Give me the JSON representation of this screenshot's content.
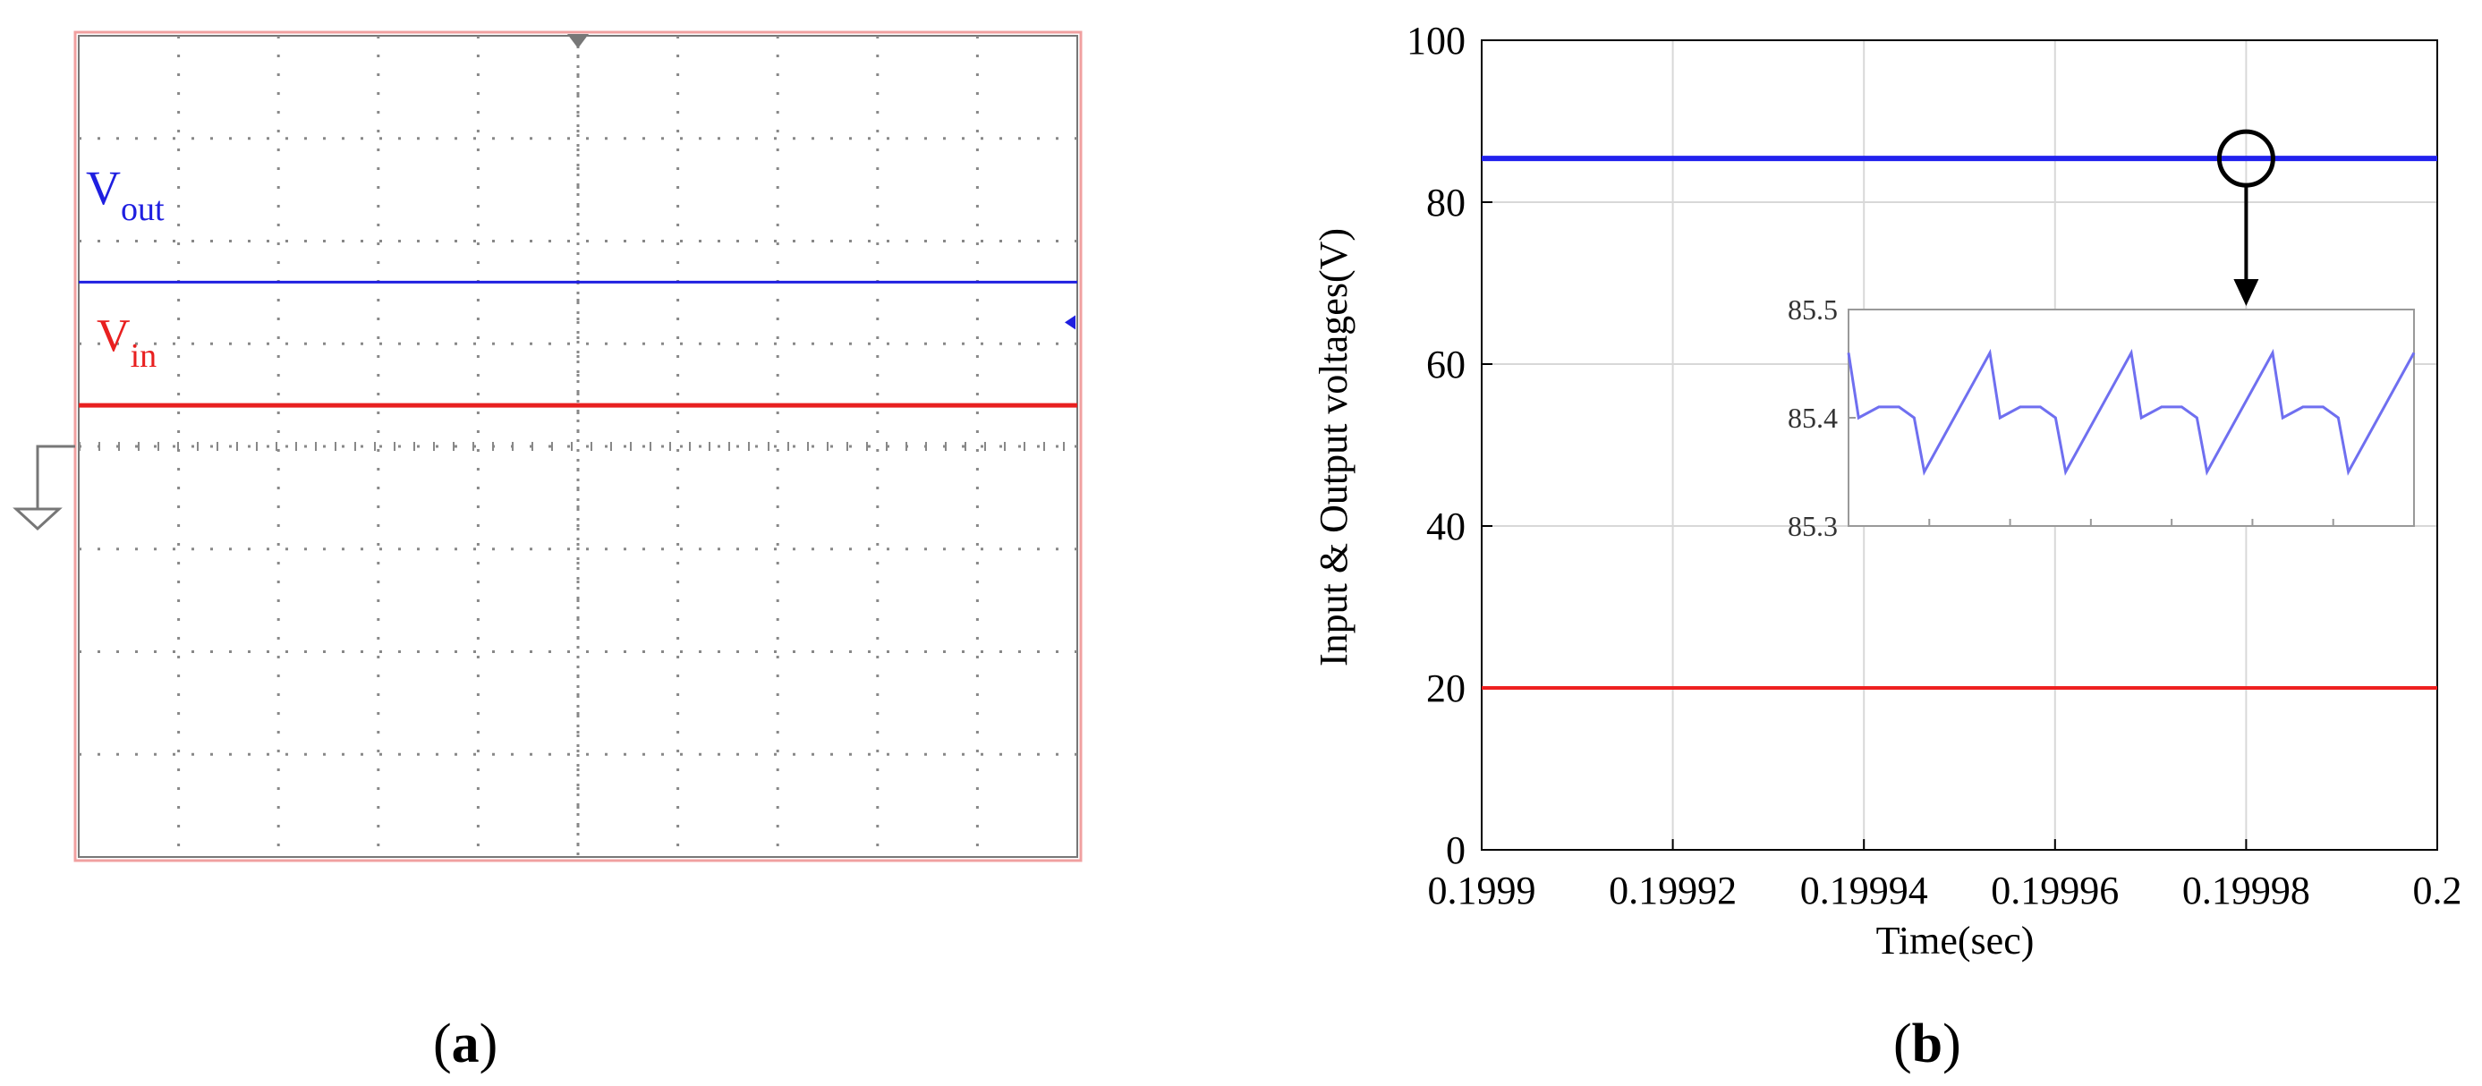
{
  "captions": {
    "a_open": "(",
    "a_letter": "a",
    "a_close": ")",
    "b_open": "(",
    "b_letter": "b",
    "b_close": ")"
  },
  "colors": {
    "vout": "#1f1fe0",
    "vin": "#e82020",
    "sim_out": "#2222ee",
    "sim_in": "#ee2020",
    "inset_line": "#6f6ff0",
    "grid": "#d8d8d8"
  },
  "chart_data": [
    {
      "type": "line",
      "panel": "a",
      "source": "oscilloscope",
      "grid": {
        "divisions_x": 10,
        "divisions_y": 8
      },
      "series": [
        {
          "name": "V",
          "subscript": "out",
          "color": "#1f1fe0",
          "level_div": 5.6
        },
        {
          "name": "V",
          "subscript": "in",
          "color": "#e82020",
          "level_div": 4.4
        }
      ],
      "ground_marker_div": 4.0,
      "title": "",
      "xlabel": "",
      "ylabel": ""
    },
    {
      "type": "line",
      "panel": "b",
      "xlabel": "Time(sec)",
      "ylabel": "Input & Output voltages(V)",
      "xlim": [
        0.1999,
        0.2
      ],
      "ylim": [
        0,
        100
      ],
      "x_ticks": [
        "0.1999",
        "0.19992",
        "0.19994",
        "0.19996",
        "0.19998",
        "0.2"
      ],
      "y_ticks": [
        "0",
        "20",
        "40",
        "60",
        "80",
        "100"
      ],
      "grid": true,
      "series": [
        {
          "color": "#2222ee",
          "x": [
            0.1999,
            0.2
          ],
          "y": [
            85.4,
            85.4
          ]
        },
        {
          "color": "#ee2020",
          "x": [
            0.1999,
            0.2
          ],
          "y": [
            20,
            20
          ]
        }
      ],
      "zoom_marker": {
        "x": 0.19998,
        "y": 85.4
      },
      "inset": {
        "ylim": [
          85.3,
          85.5
        ],
        "y_ticks": [
          "85.3",
          "85.4",
          "85.5"
        ],
        "values": [
          85.46,
          85.4,
          85.41,
          85.41,
          85.4,
          85.35,
          85.46,
          85.4,
          85.41,
          85.41,
          85.4,
          85.35,
          85.46,
          85.4,
          85.41,
          85.41,
          85.4,
          85.35,
          85.46,
          85.4,
          85.41,
          85.41,
          85.4,
          85.35,
          85.46
        ],
        "t": [
          0,
          0.02,
          0.06,
          0.1,
          0.13,
          0.15,
          0.28,
          0.3,
          0.34,
          0.38,
          0.41,
          0.43,
          0.56,
          0.58,
          0.62,
          0.66,
          0.69,
          0.71,
          0.84,
          0.86,
          0.9,
          0.94,
          0.97,
          0.99,
          1.12
        ]
      }
    }
  ]
}
